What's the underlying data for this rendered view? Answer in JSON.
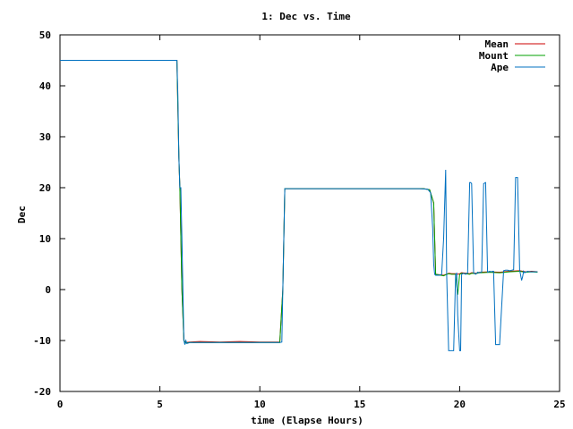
{
  "chart_data": {
    "type": "line",
    "title": "1: Dec vs. Time",
    "xlabel": "time (Elapse Hours)",
    "ylabel": "Dec",
    "xlim": [
      0,
      25
    ],
    "ylim": [
      -20,
      50
    ],
    "xticks": [
      0,
      5,
      10,
      15,
      20,
      25
    ],
    "yticks": [
      -20,
      -10,
      0,
      10,
      20,
      30,
      40,
      50
    ],
    "grid": false,
    "legend_position": "top-right",
    "series": [
      {
        "name": "Mean",
        "color": "#cc0000",
        "x": [
          0,
          5.85,
          5.95,
          6.0,
          6.1,
          6.2,
          6.3,
          6.5,
          7.0,
          8.0,
          9.0,
          10.0,
          11.0,
          11.15,
          11.25,
          11.3,
          13.7,
          18.2,
          18.5,
          18.7,
          18.8,
          19.2,
          19.35,
          19.45,
          19.6,
          19.8,
          19.9,
          20.0,
          20.1,
          20.3,
          20.5,
          20.6,
          20.8,
          21.0,
          21.5,
          22.0,
          22.5,
          23.0,
          23.3,
          23.6,
          23.9
        ],
        "y": [
          45,
          45,
          26,
          20,
          0,
          -10,
          -10.4,
          -10.3,
          -10.2,
          -10.3,
          -10.2,
          -10.3,
          -10.3,
          0,
          19.8,
          19.8,
          19.8,
          19.8,
          19.6,
          17,
          3,
          2.8,
          3.0,
          3.2,
          3.1,
          3.1,
          3.0,
          3.1,
          3.3,
          3.2,
          3.1,
          3.3,
          3.2,
          3.4,
          3.5,
          3.4,
          3.6,
          3.7,
          3.5,
          3.6,
          3.5
        ]
      },
      {
        "name": "Mount",
        "color": "#00a000",
        "x": [
          0,
          5.85,
          5.95,
          6.0,
          6.1,
          6.2,
          6.3,
          6.5,
          7.0,
          8.0,
          9.0,
          10.0,
          11.0,
          11.15,
          11.25,
          11.3,
          13.7,
          18.2,
          18.5,
          18.7,
          18.8,
          19.2,
          19.35,
          19.45,
          19.6,
          19.8,
          19.9,
          20.0,
          20.1,
          20.3,
          20.5,
          20.6,
          20.8,
          21.0,
          21.5,
          22.0,
          22.5,
          23.0,
          23.3,
          23.6,
          23.9
        ],
        "y": [
          45,
          45,
          26,
          20,
          0,
          -10,
          -10.5,
          -10.4,
          -10.4,
          -10.4,
          -10.4,
          -10.4,
          -10.4,
          0,
          19.8,
          19.8,
          19.8,
          19.8,
          19.6,
          17,
          3,
          2.7,
          3.0,
          3.1,
          3.0,
          3.0,
          -1,
          3.0,
          3.2,
          3.1,
          3.0,
          3.2,
          3.1,
          3.3,
          3.4,
          3.3,
          3.5,
          3.6,
          3.4,
          3.5,
          3.4
        ]
      },
      {
        "name": "Ape",
        "color": "#0070c0",
        "x": [
          0,
          5.85,
          5.9,
          5.95,
          6.0,
          6.05,
          6.1,
          6.15,
          6.2,
          6.25,
          6.3,
          6.35,
          6.5,
          7.0,
          8.0,
          9.0,
          10.0,
          11.0,
          11.1,
          11.15,
          11.2,
          11.25,
          12.0,
          13.0,
          14.0,
          15.0,
          16.0,
          17.0,
          18.0,
          18.4,
          18.55,
          18.65,
          18.7,
          18.75,
          18.8,
          19.0,
          19.1,
          19.2,
          19.3,
          19.35,
          19.45,
          19.5,
          19.7,
          19.8,
          19.85,
          19.9,
          20.0,
          20.05,
          20.1,
          20.2,
          20.3,
          20.4,
          20.5,
          20.55,
          20.6,
          20.7,
          20.8,
          20.85,
          20.9,
          21.0,
          21.1,
          21.2,
          21.3,
          21.4,
          21.5,
          21.6,
          21.65,
          21.7,
          21.8,
          21.9,
          22.0,
          22.2,
          22.3,
          22.4,
          22.5,
          22.6,
          22.7,
          22.8,
          22.9,
          23.0,
          23.1,
          23.15,
          23.2,
          23.25,
          23.3,
          23.4,
          23.5,
          23.7,
          23.9
        ],
        "y": [
          45,
          45,
          38,
          26,
          20,
          20,
          10,
          0,
          -10,
          -10.8,
          -10,
          -10.6,
          -10.4,
          -10.4,
          -10.4,
          -10.4,
          -10.4,
          -10.4,
          -10.3,
          0,
          10,
          19.8,
          19.8,
          19.8,
          19.8,
          19.8,
          19.8,
          19.8,
          19.8,
          19.7,
          19.0,
          12,
          5,
          3,
          2.8,
          2.8,
          3.0,
          10,
          23.5,
          3,
          -12,
          -12,
          -12,
          3,
          3.2,
          -5,
          -12,
          -12,
          3,
          3.2,
          3.0,
          3.3,
          21,
          21,
          20.8,
          3.3,
          3.0,
          3.2,
          3.4,
          3.3,
          3.5,
          20.8,
          21,
          3.4,
          3.6,
          3.5,
          3.6,
          3.6,
          -10.8,
          -10.8,
          -10.8,
          3.7,
          3.8,
          3.8,
          3.7,
          3.8,
          3.9,
          22,
          22,
          3.9,
          1.8,
          2.5,
          3.6,
          3.3,
          3.4,
          3.6,
          3.5,
          3.5,
          3.5
        ]
      }
    ]
  }
}
